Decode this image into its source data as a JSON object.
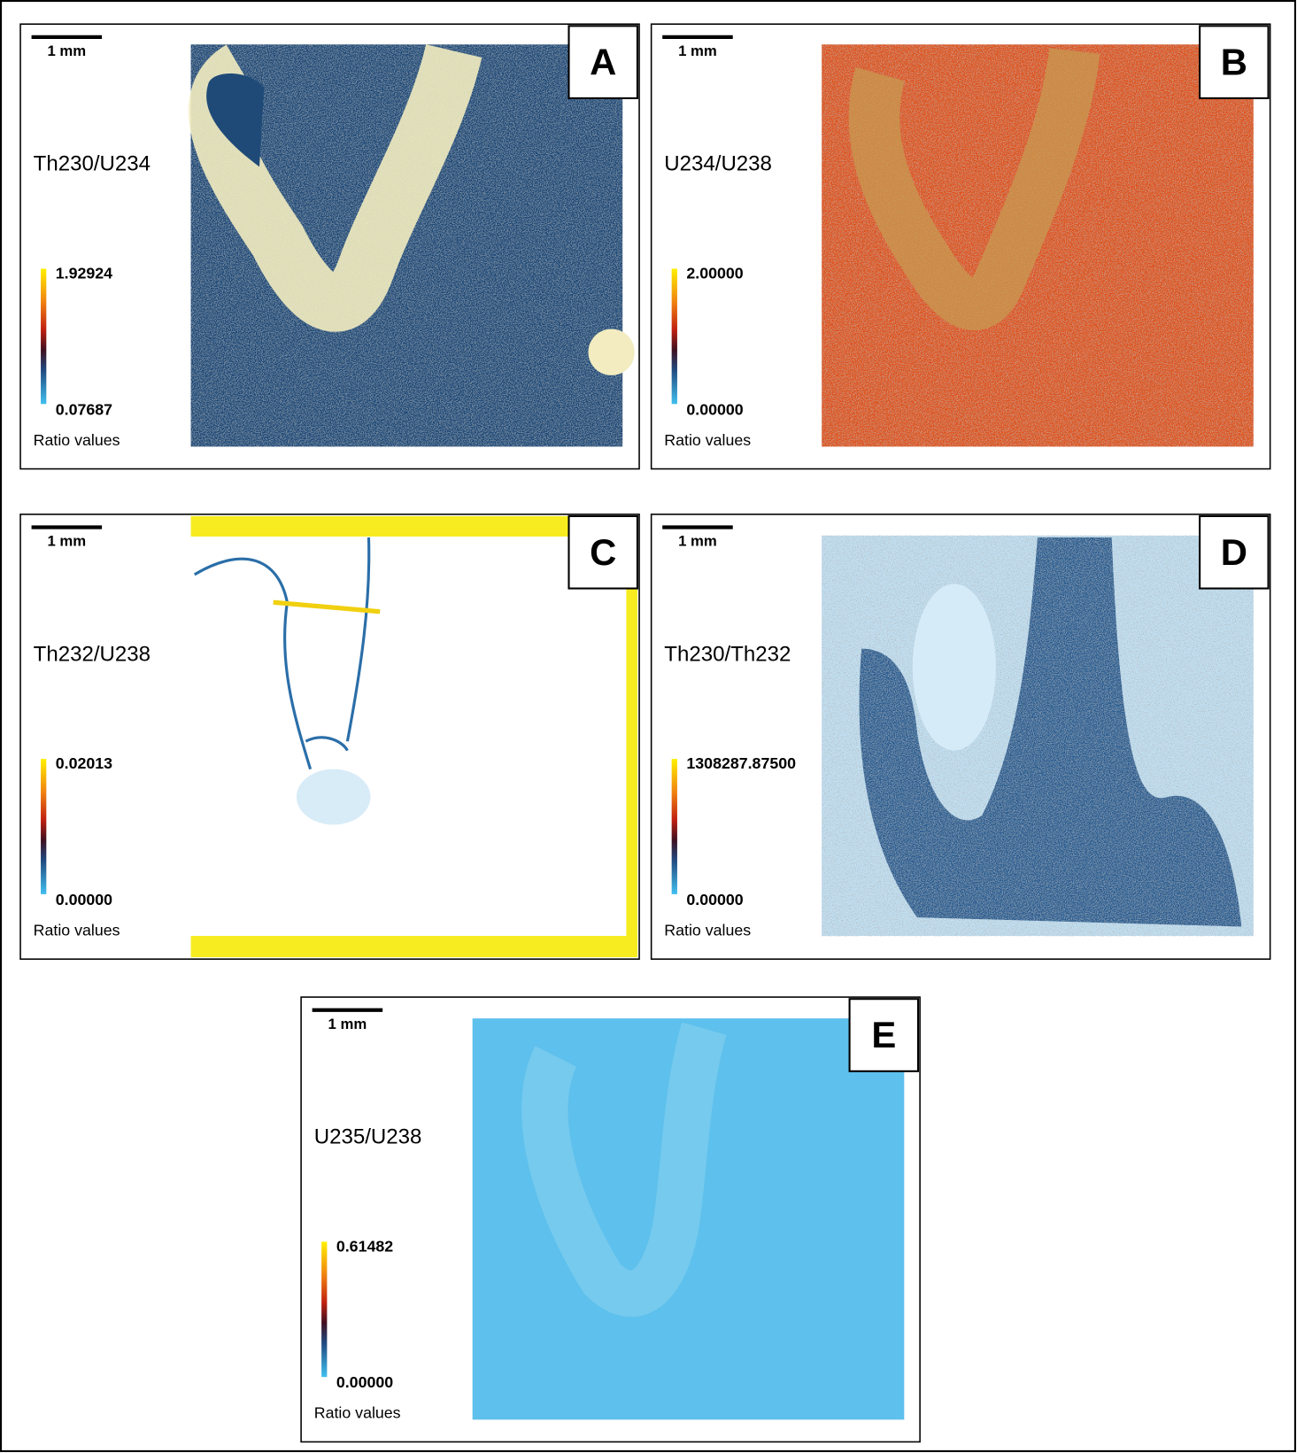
{
  "figure": {
    "panels": [
      {
        "letter": "A",
        "scale_bar": "1 mm",
        "ratio": "Th230/U234",
        "colorbar_max": "1.92924",
        "colorbar_min": "0.07687",
        "colorbar_label": "Ratio values"
      },
      {
        "letter": "B",
        "scale_bar": "1 mm",
        "ratio": "U234/U238",
        "colorbar_max": "2.00000",
        "colorbar_min": "0.00000",
        "colorbar_label": "Ratio values"
      },
      {
        "letter": "C",
        "scale_bar": "1 mm",
        "ratio": "Th232/U238",
        "colorbar_max": "0.02013",
        "colorbar_min": "0.00000",
        "colorbar_label": "Ratio values"
      },
      {
        "letter": "D",
        "scale_bar": "1 mm",
        "ratio": "Th230/Th232",
        "colorbar_max": "1308287.87500",
        "colorbar_min": "0.00000",
        "colorbar_label": "Ratio values"
      },
      {
        "letter": "E",
        "scale_bar": "1 mm",
        "ratio": "U235/U238",
        "colorbar_max": "0.61482",
        "colorbar_min": "0.00000",
        "colorbar_label": "Ratio values"
      }
    ]
  }
}
